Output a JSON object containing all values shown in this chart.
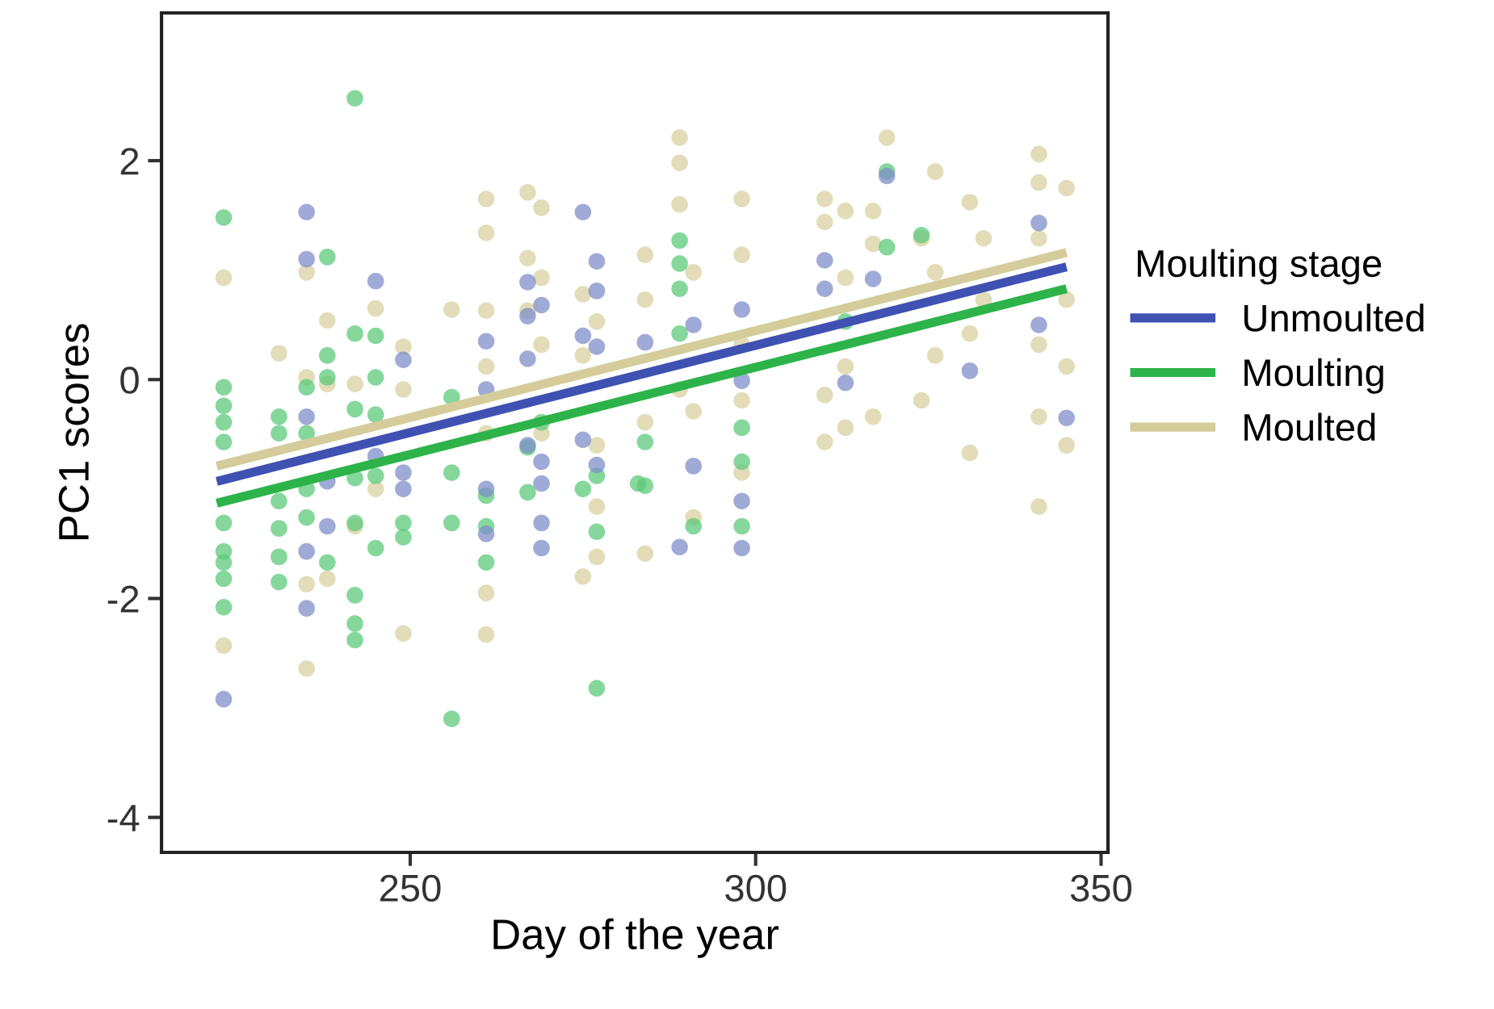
{
  "chart_data": {
    "type": "scatter",
    "xlabel": "Day of the year",
    "ylabel": "PC1 scores",
    "legend_title": "Moulting stage",
    "legend": "right",
    "grid": false,
    "xlim": [
      214,
      351
    ],
    "ylim": [
      -4.32,
      3.35
    ],
    "xticks": [
      250,
      300,
      350
    ],
    "yticks": [
      -4,
      -2,
      0,
      2
    ],
    "series": [
      {
        "marker": "circle",
        "color": "#d8d0a0",
        "x": [
          223,
          223,
          231,
          235,
          235,
          235,
          235,
          238,
          238,
          238,
          242,
          242,
          245,
          245,
          249,
          249,
          249,
          256,
          261,
          261,
          261,
          261,
          261,
          261,
          261,
          267,
          267,
          267,
          269,
          269,
          269,
          269,
          275,
          275,
          275,
          277,
          277,
          277,
          277,
          284,
          284,
          284,
          284,
          289,
          289,
          289,
          289,
          291,
          291,
          291,
          298,
          298,
          298,
          298,
          298,
          310,
          310,
          310,
          310,
          313,
          313,
          313,
          313,
          317,
          317,
          317,
          319,
          324,
          324,
          326,
          326,
          326,
          331,
          331,
          331,
          333,
          333,
          341,
          341,
          341,
          341,
          341,
          341,
          345,
          345,
          345,
          345
        ],
        "values": [
          0.93,
          -2.43,
          0.24,
          0.98,
          0.02,
          -1.87,
          -2.64,
          0.54,
          -0.04,
          -1.82,
          -0.04,
          -1.34,
          0.65,
          -1.0,
          0.3,
          -0.09,
          -2.32,
          0.64,
          1.65,
          1.34,
          0.63,
          0.12,
          -0.49,
          -1.95,
          -2.33,
          1.71,
          1.11,
          0.63,
          1.57,
          0.93,
          0.32,
          -0.49,
          0.78,
          0.22,
          -1.8,
          0.53,
          -0.6,
          -1.16,
          -1.62,
          1.14,
          0.73,
          -0.39,
          -1.59,
          2.21,
          1.98,
          1.6,
          -0.09,
          0.98,
          -0.29,
          -1.26,
          1.65,
          1.14,
          0.32,
          -0.19,
          -0.85,
          1.65,
          1.44,
          -0.14,
          -0.57,
          1.54,
          0.93,
          0.12,
          -0.44,
          1.54,
          1.24,
          -0.34,
          2.21,
          1.29,
          -0.19,
          1.9,
          0.98,
          0.22,
          1.62,
          0.42,
          -0.67,
          1.29,
          0.73,
          2.06,
          1.8,
          1.29,
          0.32,
          -0.34,
          -1.16,
          1.75,
          0.73,
          0.12,
          -0.6
        ]
      },
      {
        "marker": "circle",
        "color": "#5cc97a",
        "x": [
          223,
          223,
          223,
          223,
          223,
          223,
          223,
          223,
          223,
          223,
          231,
          231,
          231,
          231,
          231,
          231,
          235,
          235,
          235,
          235,
          238,
          238,
          238,
          238,
          242,
          242,
          242,
          242,
          242,
          242,
          242,
          242,
          245,
          245,
          245,
          245,
          245,
          249,
          249,
          256,
          256,
          256,
          256,
          261,
          261,
          261,
          267,
          267,
          269,
          275,
          277,
          277,
          277,
          283,
          284,
          284,
          289,
          289,
          289,
          289,
          291,
          298,
          298,
          298,
          313,
          319,
          319,
          324
        ],
        "values": [
          1.48,
          -0.07,
          -0.24,
          -0.39,
          -0.57,
          -1.31,
          -1.57,
          -1.67,
          -1.82,
          -2.08,
          -0.34,
          -0.49,
          -1.11,
          -1.36,
          -1.62,
          -1.85,
          -0.07,
          -0.49,
          -1.0,
          -1.26,
          1.12,
          0.22,
          0.02,
          -1.67,
          2.57,
          0.42,
          -0.27,
          -0.9,
          -1.31,
          -1.97,
          -2.23,
          -2.38,
          0.4,
          0.02,
          -0.32,
          -0.88,
          -1.54,
          -1.31,
          -1.44,
          -0.16,
          -0.85,
          -1.31,
          -3.1,
          -1.34,
          -1.67,
          -1.06,
          -1.03,
          -0.62,
          -0.39,
          -1.0,
          -0.88,
          -1.39,
          -2.82,
          -0.95,
          -0.57,
          -0.97,
          1.27,
          1.06,
          0.83,
          0.42,
          -1.34,
          -0.44,
          -0.75,
          -1.34,
          0.53,
          1.21,
          1.9,
          1.32
        ]
      },
      {
        "marker": "circle",
        "color": "#7f8fc8",
        "x": [
          223,
          235,
          235,
          235,
          235,
          235,
          238,
          238,
          245,
          245,
          249,
          249,
          249,
          261,
          261,
          261,
          261,
          267,
          267,
          267,
          267,
          269,
          269,
          269,
          269,
          269,
          275,
          275,
          275,
          277,
          277,
          277,
          277,
          284,
          291,
          291,
          289,
          298,
          298,
          298,
          298,
          310,
          310,
          313,
          317,
          319,
          331,
          341,
          341,
          345
        ],
        "values": [
          -2.92,
          1.53,
          1.1,
          -0.34,
          -1.57,
          -2.09,
          -0.93,
          -1.34,
          0.9,
          -0.7,
          0.18,
          -0.85,
          -1.0,
          0.35,
          -0.09,
          -1.0,
          -1.41,
          0.89,
          0.58,
          0.19,
          -0.6,
          0.68,
          -0.75,
          -0.95,
          -1.31,
          -1.54,
          1.53,
          0.4,
          -0.55,
          1.08,
          0.81,
          0.3,
          -0.78,
          0.34,
          0.5,
          -0.79,
          -1.53,
          0.64,
          -0.01,
          -1.11,
          -1.54,
          1.09,
          0.83,
          -0.03,
          0.92,
          1.86,
          0.08,
          1.43,
          0.5,
          -0.35
        ]
      },
      {
        "type": "line",
        "name": "Unmoulted",
        "color": "#3f51b1",
        "x": [
          222,
          345
        ],
        "values": [
          -0.93,
          1.03
        ]
      },
      {
        "type": "line",
        "name": "Moulting",
        "color": "#2db34a",
        "x": [
          222,
          345
        ],
        "values": [
          -1.13,
          0.83
        ]
      },
      {
        "type": "line",
        "name": "Moulted",
        "color": "#d4cc9a",
        "x": [
          222,
          345
        ],
        "values": [
          -0.79,
          1.16
        ]
      }
    ]
  }
}
